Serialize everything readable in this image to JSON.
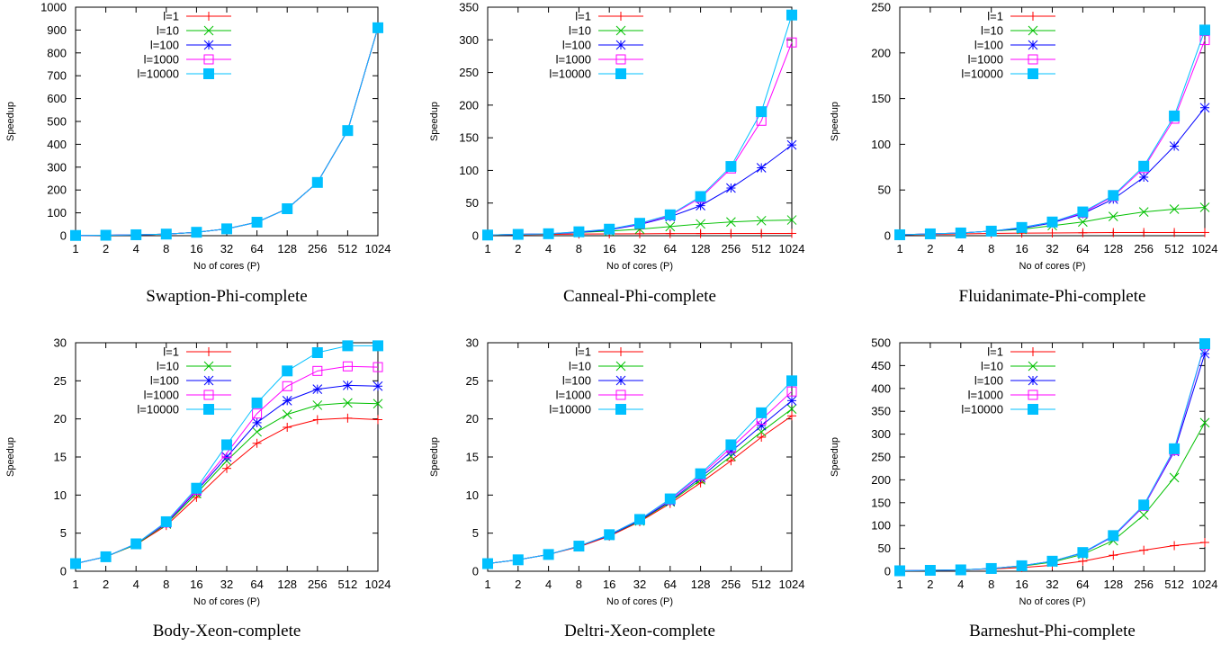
{
  "chart_data": [
    {
      "type": "line",
      "caption": "Swaption-Phi-complete",
      "xlabel": "No of cores (P)",
      "ylabel": "Speedup",
      "categories": [
        "1",
        "2",
        "4",
        "8",
        "16",
        "32",
        "64",
        "128",
        "256",
        "512",
        "1024"
      ],
      "ylim": [
        0,
        1000
      ],
      "yticks": [
        0,
        100,
        200,
        300,
        400,
        500,
        600,
        700,
        800,
        900,
        1000
      ],
      "legend_position": "top-left",
      "series": [
        {
          "name": "l=1",
          "color": "#ff0000",
          "marker": "plus",
          "values": [
            1,
            2,
            4,
            7,
            15,
            30,
            59,
            118,
            233,
            460,
            910
          ]
        },
        {
          "name": "l=10",
          "color": "#00c000",
          "marker": "cross",
          "values": [
            1,
            2,
            4,
            7,
            15,
            30,
            59,
            118,
            233,
            460,
            910
          ]
        },
        {
          "name": "l=100",
          "color": "#0000ff",
          "marker": "star",
          "values": [
            1,
            2,
            4,
            7,
            15,
            30,
            59,
            118,
            233,
            460,
            910
          ]
        },
        {
          "name": "l=1000",
          "color": "#ff00ff",
          "marker": "square-open",
          "values": [
            1,
            2,
            4,
            7,
            15,
            30,
            59,
            118,
            233,
            460,
            910
          ]
        },
        {
          "name": "l=10000",
          "color": "#00c0ff",
          "marker": "square-filled",
          "values": [
            1,
            2,
            4,
            7,
            15,
            30,
            59,
            118,
            233,
            460,
            910
          ]
        }
      ]
    },
    {
      "type": "line",
      "caption": "Canneal-Phi-complete",
      "xlabel": "No of cores (P)",
      "ylabel": "Speedup",
      "categories": [
        "1",
        "2",
        "4",
        "8",
        "16",
        "32",
        "64",
        "128",
        "256",
        "512",
        "1024"
      ],
      "ylim": [
        0,
        350
      ],
      "yticks": [
        0,
        50,
        100,
        150,
        200,
        250,
        300,
        350
      ],
      "legend_position": "top-left",
      "series": [
        {
          "name": "l=1",
          "color": "#ff0000",
          "marker": "plus",
          "values": [
            1,
            1.5,
            2,
            2.5,
            2.8,
            3,
            3.2,
            3.3,
            3.4,
            3.5,
            3.5
          ]
        },
        {
          "name": "l=10",
          "color": "#00c000",
          "marker": "cross",
          "values": [
            1,
            2,
            3,
            5,
            7,
            10,
            14,
            18,
            21,
            23,
            24
          ]
        },
        {
          "name": "l=100",
          "color": "#0000ff",
          "marker": "star",
          "values": [
            1,
            2,
            3,
            5,
            9,
            17,
            29,
            46,
            73,
            104,
            139
          ]
        },
        {
          "name": "l=1000",
          "color": "#ff00ff",
          "marker": "square-open",
          "values": [
            1,
            2,
            3,
            6,
            10,
            18,
            31,
            58,
            103,
            176,
            296
          ]
        },
        {
          "name": "l=10000",
          "color": "#00c0ff",
          "marker": "square-filled",
          "values": [
            1,
            2,
            3,
            6,
            10,
            19,
            32,
            60,
            106,
            190,
            338
          ]
        }
      ]
    },
    {
      "type": "line",
      "caption": "Fluidanimate-Phi-complete",
      "xlabel": "No of cores (P)",
      "ylabel": "Speedup",
      "categories": [
        "1",
        "2",
        "4",
        "8",
        "16",
        "32",
        "64",
        "128",
        "256",
        "512",
        "1024"
      ],
      "ylim": [
        0,
        250
      ],
      "yticks": [
        0,
        50,
        100,
        150,
        200,
        250
      ],
      "legend_position": "top-left",
      "series": [
        {
          "name": "l=1",
          "color": "#ff0000",
          "marker": "plus",
          "values": [
            1,
            1.5,
            2,
            2.5,
            2.8,
            3,
            3.2,
            3.4,
            3.5,
            3.5,
            3.5
          ]
        },
        {
          "name": "l=10",
          "color": "#00c000",
          "marker": "cross",
          "values": [
            1,
            2,
            3,
            5,
            7,
            11,
            15,
            21,
            26,
            29,
            31
          ]
        },
        {
          "name": "l=100",
          "color": "#0000ff",
          "marker": "star",
          "values": [
            1,
            2,
            3,
            5,
            8,
            14,
            24,
            40,
            64,
            98,
            140
          ]
        },
        {
          "name": "l=1000",
          "color": "#ff00ff",
          "marker": "square-open",
          "values": [
            1,
            2,
            3,
            5,
            9,
            15,
            25,
            43,
            74,
            128,
            214
          ]
        },
        {
          "name": "l=10000",
          "color": "#00c0ff",
          "marker": "square-filled",
          "values": [
            1,
            2,
            3,
            5,
            9,
            15,
            26,
            44,
            76,
            131,
            225
          ]
        }
      ]
    },
    {
      "type": "line",
      "caption": "Body-Xeon-complete",
      "xlabel": "No of cores (P)",
      "ylabel": "Speedup",
      "categories": [
        "1",
        "2",
        "4",
        "8",
        "16",
        "32",
        "64",
        "128",
        "256",
        "512",
        "1024"
      ],
      "ylim": [
        0,
        30
      ],
      "yticks": [
        0,
        5,
        10,
        15,
        20,
        25,
        30
      ],
      "legend_position": "top-left",
      "series": [
        {
          "name": "l=1",
          "color": "#ff0000",
          "marker": "plus",
          "values": [
            1,
            1.9,
            3.5,
            6,
            9.7,
            13.5,
            16.8,
            18.9,
            19.9,
            20.1,
            19.9
          ]
        },
        {
          "name": "l=10",
          "color": "#00c000",
          "marker": "cross",
          "values": [
            1,
            1.9,
            3.5,
            6.2,
            10.2,
            14.5,
            18.3,
            20.6,
            21.8,
            22.1,
            22
          ]
        },
        {
          "name": "l=100",
          "color": "#0000ff",
          "marker": "star",
          "values": [
            1,
            1.9,
            3.6,
            6.3,
            10.5,
            15,
            19.5,
            22.4,
            23.9,
            24.4,
            24.3
          ]
        },
        {
          "name": "l=1000",
          "color": "#ff00ff",
          "marker": "square-open",
          "values": [
            1,
            1.9,
            3.6,
            6.4,
            10.7,
            15.5,
            20.7,
            24.3,
            26.3,
            26.9,
            26.8
          ]
        },
        {
          "name": "l=10000",
          "color": "#00c0ff",
          "marker": "square-filled",
          "values": [
            1,
            1.9,
            3.6,
            6.5,
            10.9,
            16.6,
            22.1,
            26.3,
            28.7,
            29.6,
            29.6
          ]
        }
      ]
    },
    {
      "type": "line",
      "caption": "Deltri-Xeon-complete",
      "xlabel": "No of cores (P)",
      "ylabel": "Speedup",
      "categories": [
        "1",
        "2",
        "4",
        "8",
        "16",
        "32",
        "64",
        "128",
        "256",
        "512",
        "1024"
      ],
      "ylim": [
        0,
        30
      ],
      "yticks": [
        0,
        5,
        10,
        15,
        20,
        25,
        30
      ],
      "legend_position": "top-left",
      "series": [
        {
          "name": "l=1",
          "color": "#ff0000",
          "marker": "plus",
          "values": [
            1,
            1.5,
            2.2,
            3.2,
            4.6,
            6.5,
            8.9,
            11.6,
            14.5,
            17.6,
            20.4
          ]
        },
        {
          "name": "l=10",
          "color": "#00c000",
          "marker": "cross",
          "values": [
            1,
            1.5,
            2.2,
            3.3,
            4.7,
            6.6,
            9.1,
            12,
            15.1,
            18.3,
            21.3
          ]
        },
        {
          "name": "l=100",
          "color": "#0000ff",
          "marker": "star",
          "values": [
            1,
            1.5,
            2.2,
            3.3,
            4.7,
            6.7,
            9.2,
            12.3,
            15.7,
            19.1,
            22.4
          ]
        },
        {
          "name": "l=1000",
          "color": "#ff00ff",
          "marker": "square-open",
          "values": [
            1,
            1.5,
            2.2,
            3.3,
            4.8,
            6.8,
            9.4,
            12.6,
            16.2,
            19.9,
            23.6
          ]
        },
        {
          "name": "l=10000",
          "color": "#00c0ff",
          "marker": "square-filled",
          "values": [
            1,
            1.5,
            2.2,
            3.3,
            4.8,
            6.8,
            9.5,
            12.8,
            16.6,
            20.8,
            25
          ]
        }
      ]
    },
    {
      "type": "line",
      "caption": "Barneshut-Phi-complete",
      "xlabel": "No of cores (P)",
      "ylabel": "Speedup",
      "categories": [
        "1",
        "2",
        "4",
        "8",
        "16",
        "32",
        "64",
        "128",
        "256",
        "512",
        "1024"
      ],
      "ylim": [
        0,
        500
      ],
      "yticks": [
        0,
        50,
        100,
        150,
        200,
        250,
        300,
        350,
        400,
        450,
        500
      ],
      "legend_position": "top-left",
      "series": [
        {
          "name": "l=1",
          "color": "#ff0000",
          "marker": "plus",
          "values": [
            1,
            2,
            3,
            5,
            8,
            13,
            22,
            35,
            46,
            56,
            63
          ]
        },
        {
          "name": "l=10",
          "color": "#00c000",
          "marker": "cross",
          "values": [
            1,
            2,
            3,
            6,
            11,
            20,
            37,
            67,
            123,
            205,
            325
          ]
        },
        {
          "name": "l=100",
          "color": "#0000ff",
          "marker": "star",
          "values": [
            1,
            2,
            3,
            6,
            12,
            22,
            40,
            76,
            142,
            262,
            476
          ]
        },
        {
          "name": "l=1000",
          "color": "#ff00ff",
          "marker": "square-open",
          "values": [
            1,
            2,
            3,
            6,
            12,
            22,
            41,
            77,
            143,
            265,
            496
          ]
        },
        {
          "name": "l=10000",
          "color": "#00c0ff",
          "marker": "square-filled",
          "values": [
            1,
            2,
            3,
            6,
            12,
            22,
            41,
            78,
            145,
            268,
            498
          ]
        }
      ]
    }
  ]
}
